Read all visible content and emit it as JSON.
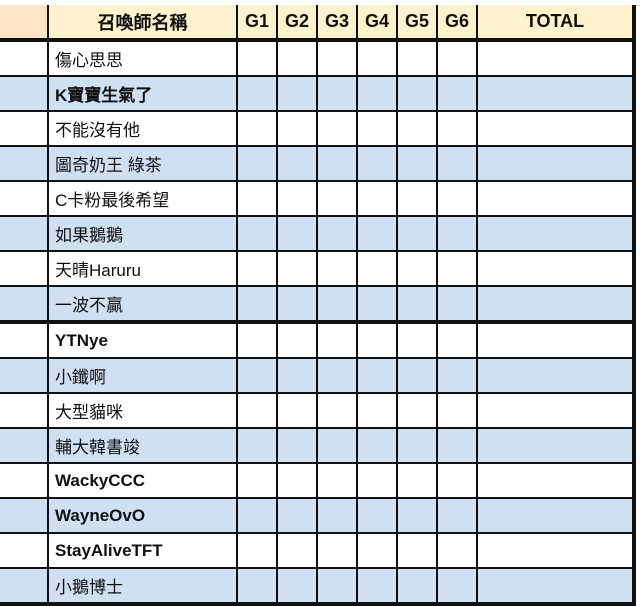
{
  "headers": {
    "blank": "",
    "name": "召喚師名稱",
    "games": [
      "G1",
      "G2",
      "G3",
      "G4",
      "G5",
      "G6"
    ],
    "total": "TOTAL"
  },
  "colors": {
    "header_bg": "#fff2cc",
    "alt_row_bg": "#cfe0f2",
    "border": "#111111"
  },
  "players": [
    {
      "name": "傷心思思",
      "scores": [
        "",
        "",
        "",
        "",
        "",
        ""
      ],
      "total": ""
    },
    {
      "name": "K寶寶生氣了",
      "scores": [
        "",
        "",
        "",
        "",
        "",
        ""
      ],
      "total": ""
    },
    {
      "name": "不能沒有他",
      "scores": [
        "",
        "",
        "",
        "",
        "",
        ""
      ],
      "total": ""
    },
    {
      "name": "圖奇奶王 綠茶",
      "scores": [
        "",
        "",
        "",
        "",
        "",
        ""
      ],
      "total": ""
    },
    {
      "name": "C卡粉最後希望",
      "scores": [
        "",
        "",
        "",
        "",
        "",
        ""
      ],
      "total": ""
    },
    {
      "name": "如果鵝鵝",
      "scores": [
        "",
        "",
        "",
        "",
        "",
        ""
      ],
      "total": ""
    },
    {
      "name": "天晴Haruru",
      "scores": [
        "",
        "",
        "",
        "",
        "",
        ""
      ],
      "total": ""
    },
    {
      "name": "一波不贏",
      "scores": [
        "",
        "",
        "",
        "",
        "",
        ""
      ],
      "total": ""
    },
    {
      "name": "YTNye",
      "scores": [
        "",
        "",
        "",
        "",
        "",
        ""
      ],
      "total": ""
    },
    {
      "name": "小鑯啊",
      "scores": [
        "",
        "",
        "",
        "",
        "",
        ""
      ],
      "total": ""
    },
    {
      "name": "大型貓咪",
      "scores": [
        "",
        "",
        "",
        "",
        "",
        ""
      ],
      "total": ""
    },
    {
      "name": "輔大韓書竣",
      "scores": [
        "",
        "",
        "",
        "",
        "",
        ""
      ],
      "total": ""
    },
    {
      "name": "WackyCCC",
      "scores": [
        "",
        "",
        "",
        "",
        "",
        ""
      ],
      "total": ""
    },
    {
      "name": "WayneOvO",
      "scores": [
        "",
        "",
        "",
        "",
        "",
        ""
      ],
      "total": ""
    },
    {
      "name": "StayAliveTFT",
      "scores": [
        "",
        "",
        "",
        "",
        "",
        ""
      ],
      "total": ""
    },
    {
      "name": "小鵝博士",
      "scores": [
        "",
        "",
        "",
        "",
        "",
        ""
      ],
      "total": ""
    }
  ]
}
